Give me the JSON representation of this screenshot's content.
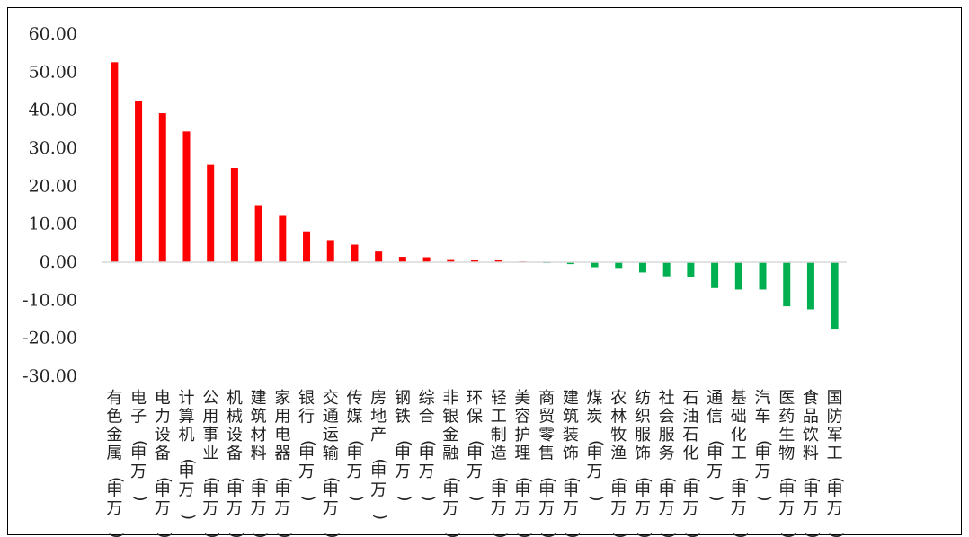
{
  "chart_data": {
    "type": "bar",
    "title": "",
    "xlabel": "",
    "ylabel": "",
    "ylim": [
      -30,
      60
    ],
    "yticks": [
      60,
      50,
      40,
      30,
      20,
      10,
      0,
      -10,
      -20,
      -30
    ],
    "ytick_labels": [
      "60.00",
      "50.00",
      "40.00",
      "30.00",
      "20.00",
      "10.00",
      "0.00",
      "-10.00",
      "-20.00",
      "-30.00"
    ],
    "grid": false,
    "legend": "none",
    "colors": {
      "positive": "#ff0000",
      "negative": "#00b050",
      "axis": "#d9d9d9"
    },
    "categories": [
      "有色金属(申万)",
      "电子(申万)",
      "电力设备(申万)",
      "计算机(申万)",
      "公用事业(申万)",
      "机械设备(申万)",
      "建筑材料(申万)",
      "家用电器(申万)",
      "银行(申万)",
      "交通运输(申万)",
      "传媒(申万)",
      "房地产(申万)",
      "钢铁(申万)",
      "综合(申万)",
      "非银金融(申万)",
      "环保(申万)",
      "轻工制造(申万)",
      "美容护理(申万)",
      "商贸零售(申万)",
      "建筑装饰(申万)",
      "煤炭(申万)",
      "农林牧渔(申万)",
      "纺织服饰(申万)",
      "社会服务(申万)",
      "石油石化(申万)",
      "通信(申万)",
      "基础化工(申万)",
      "汽车(申万)",
      "医药生物(申万)",
      "食品饮料(申万)",
      "国防军工(申万)"
    ],
    "values": [
      52.6,
      42.3,
      39.2,
      34.4,
      25.6,
      24.8,
      15.0,
      12.4,
      8.1,
      5.8,
      4.6,
      2.8,
      1.4,
      1.3,
      0.8,
      0.7,
      0.5,
      0.2,
      -0.2,
      -0.5,
      -1.3,
      -1.5,
      -2.7,
      -3.7,
      -3.8,
      -6.8,
      -7.2,
      -7.2,
      -11.6,
      -12.4,
      -17.5
    ]
  }
}
